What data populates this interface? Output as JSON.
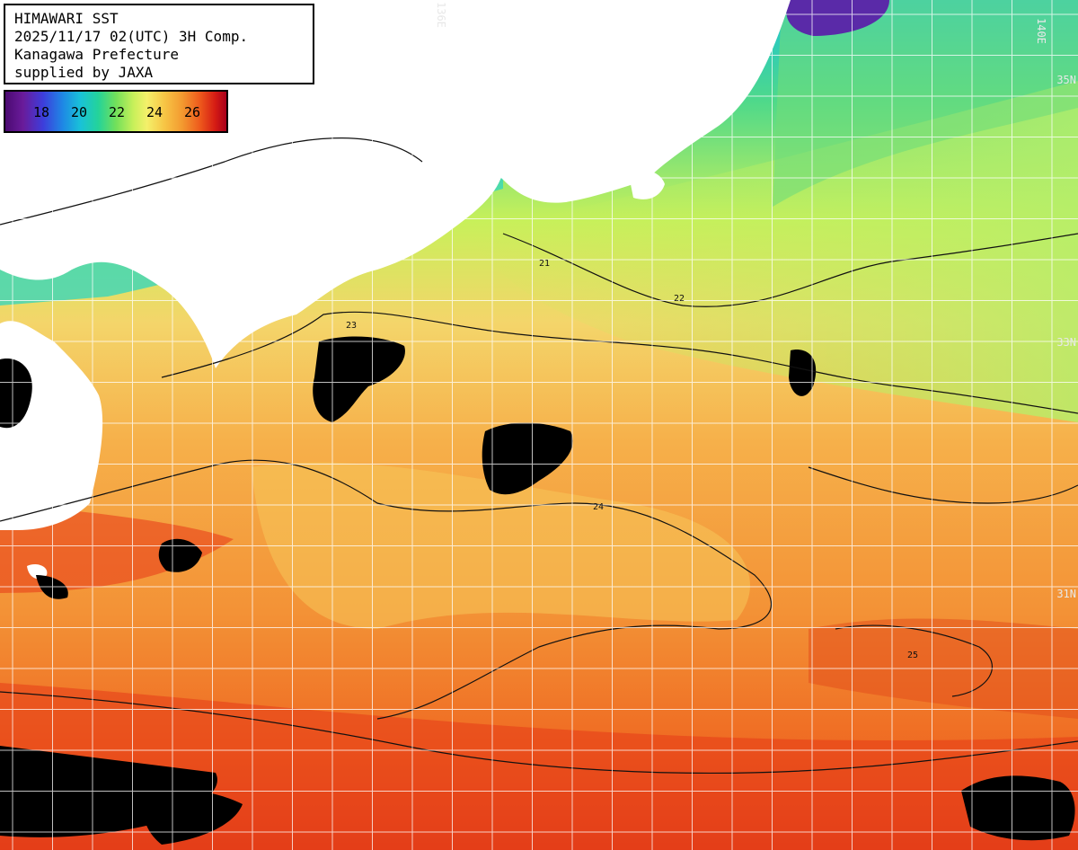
{
  "info": {
    "title": "HIMAWARI SST",
    "datetime": "2025/11/17 02(UTC) 3H Comp.",
    "region": "Kanagawa Prefecture",
    "credit": "supplied by JAXA"
  },
  "colorbar": {
    "labels": [
      "18",
      "20",
      "22",
      "24",
      "26"
    ],
    "colors": [
      "#4b0a72",
      "#3d3ddb",
      "#1e88e5",
      "#19c2d8",
      "#24d39a",
      "#72e05a",
      "#c8f05a",
      "#f4f06a",
      "#f7c545",
      "#f39a30",
      "#ee5a1c",
      "#d51b14",
      "#a8001c"
    ]
  },
  "map": {
    "land_color": "#ffffff",
    "cloud_color": "#000000",
    "contour_labels": [
      "21",
      "22",
      "23",
      "24",
      "25"
    ],
    "lat_labels": [
      "35N",
      "33N",
      "31N"
    ],
    "lon_labels": [
      "136E",
      "140E"
    ]
  }
}
